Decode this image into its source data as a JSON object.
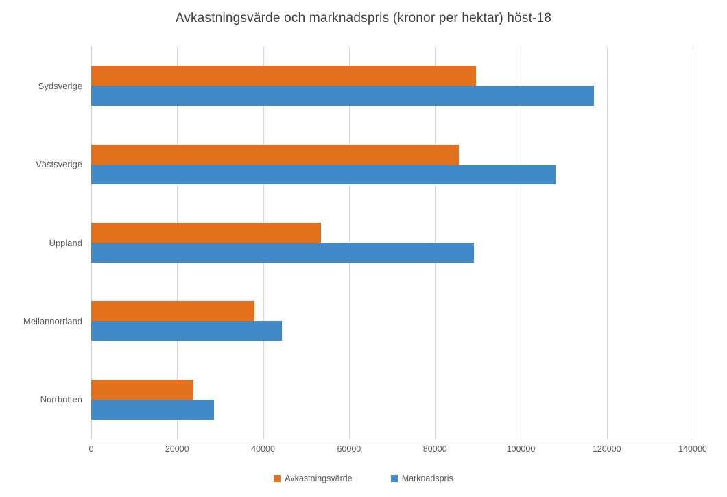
{
  "title": "Avkastningsvärde och marknadspris (kronor per hektar) höst-18",
  "chart_data": {
    "type": "bar",
    "orientation": "horizontal",
    "title": "Avkastningsvärde och marknadspris (kronor per hektar) höst-18",
    "categories": [
      "Sydsverige",
      "Västsverige",
      "Uppland",
      "Mellannorrland",
      "Norrbotten"
    ],
    "series": [
      {
        "name": "Avkastningsvärde",
        "slug": "avkastningsvarde",
        "color": "#E2711D",
        "values": [
          89500,
          85500,
          53500,
          38000,
          23800
        ]
      },
      {
        "name": "Marknadspris",
        "slug": "marknadspris",
        "color": "#4189C7",
        "values": [
          117000,
          108000,
          89000,
          44300,
          28500
        ]
      }
    ],
    "xlabel": "",
    "ylabel": "",
    "xlim": [
      0,
      140000
    ],
    "xticks": [
      0,
      20000,
      40000,
      60000,
      80000,
      100000,
      120000,
      140000
    ],
    "xtick_labels": [
      "0",
      "20000",
      "40000",
      "60000",
      "80000",
      "100000",
      "120000",
      "140000"
    ],
    "grid": true,
    "legend_position": "bottom"
  },
  "style": {
    "gridline_color": "#d9d9d9",
    "axis_color": "#c9c9c9",
    "title_color": "#3f3f3f",
    "label_color": "#595959",
    "background": "#ffffff"
  }
}
